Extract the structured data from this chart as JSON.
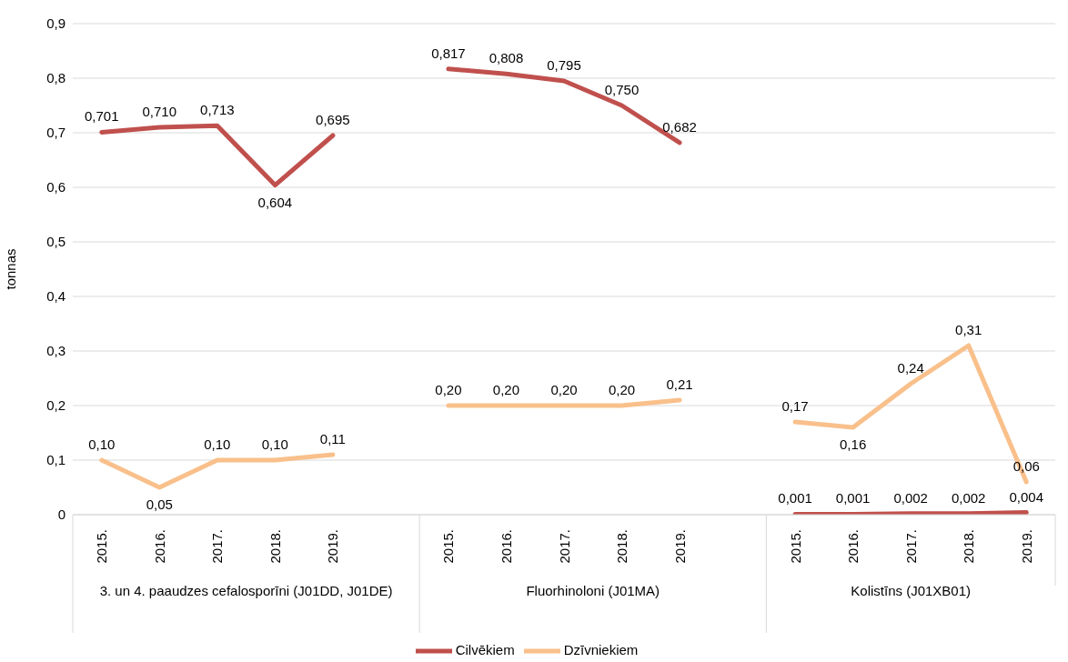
{
  "chart_data": {
    "type": "line",
    "ylabel": "tonnas",
    "categories": [
      "2015.",
      "2016.",
      "2017.",
      "2018.",
      "2019.",
      null,
      "2015.",
      "2016.",
      "2017.",
      "2018.",
      "2019.",
      null,
      "2015.",
      "2016.",
      "2017.",
      "2018.",
      "2019."
    ],
    "annotations": [
      "3. un 4. paaudzes cefalosporīni (J01DD, J01DE)",
      "Fluorhinoloni (J01MA)",
      "Kolistīns (J01XB01)"
    ],
    "series": [
      {
        "name": "Dzīvniekiem",
        "color": "#f9c08b",
        "values": [
          0.1,
          0.05,
          0.1,
          0.1,
          0.11,
          null,
          0.2,
          0.2,
          0.2,
          0.2,
          0.21,
          null,
          0.17,
          0.16,
          0.24,
          0.31,
          0.06
        ],
        "value_labels": [
          "0,10",
          "0,05",
          "0,10",
          "0,10",
          "0,11",
          null,
          "0,20",
          "0,20",
          "0,20",
          "0,20",
          "0,21",
          null,
          "0,17",
          "0,16",
          "0,24",
          "0,31",
          "0,06"
        ]
      },
      {
        "name": "Cilvēkiem",
        "color": "#c0504d",
        "values": [
          0.701,
          0.71,
          0.713,
          0.604,
          0.695,
          null,
          0.817,
          0.808,
          0.795,
          0.75,
          0.682,
          null,
          0.001,
          0.001,
          0.002,
          0.002,
          0.004
        ],
        "value_labels": [
          "0,701",
          "0,710",
          "0,713",
          "0,604",
          "0,695",
          null,
          "0,817",
          "0,808",
          "0,795",
          "0,750",
          "0,682",
          null,
          "0,001",
          "0,001",
          "0,002",
          "0,002",
          "0,004"
        ]
      }
    ],
    "ylim": [
      0,
      0.9
    ],
    "yticks": [
      {
        "value": 0,
        "label": "0"
      },
      {
        "value": 0.1,
        "label": "0,1"
      },
      {
        "value": 0.2,
        "label": "0,2"
      },
      {
        "value": 0.3,
        "label": "0,3"
      },
      {
        "value": 0.4,
        "label": "0,4"
      },
      {
        "value": 0.5,
        "label": "0,5"
      },
      {
        "value": 0.6,
        "label": "0,6"
      },
      {
        "value": 0.7,
        "label": "0,7"
      },
      {
        "value": 0.8,
        "label": "0,8"
      },
      {
        "value": 0.9,
        "label": "0,9"
      }
    ],
    "grid": "y",
    "legend": "bottom",
    "marker": "none",
    "line_style": "solid"
  }
}
